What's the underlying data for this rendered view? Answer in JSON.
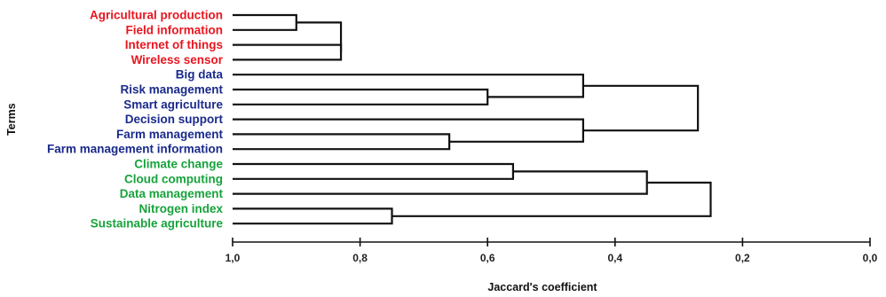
{
  "chart_data": {
    "type": "dendrogram",
    "title": "",
    "xlabel": "Jaccard's coefficient",
    "ylabel": "Terms",
    "xlim": [
      1.0,
      0.0
    ],
    "xticks": [
      "1,0",
      "0,8",
      "0,6",
      "0,4",
      "0,2",
      "0,0"
    ],
    "xtick_values": [
      1.0,
      0.8,
      0.6,
      0.4,
      0.2,
      0.0
    ],
    "colors": {
      "red": "#e8161f",
      "blue": "#1a2a8c",
      "green": "#17a33b"
    },
    "terms": [
      {
        "label": "Agricultural production",
        "group": "red"
      },
      {
        "label": "Field information",
        "group": "red"
      },
      {
        "label": "Internet of things",
        "group": "red"
      },
      {
        "label": "Wireless sensor",
        "group": "red"
      },
      {
        "label": "Big data",
        "group": "blue"
      },
      {
        "label": "Risk management",
        "group": "blue"
      },
      {
        "label": "Smart agriculture",
        "group": "blue"
      },
      {
        "label": "Decision support",
        "group": "blue"
      },
      {
        "label": "Farm management",
        "group": "blue"
      },
      {
        "label": "Farm management information",
        "group": "blue"
      },
      {
        "label": "Climate change",
        "group": "green"
      },
      {
        "label": "Cloud computing",
        "group": "green"
      },
      {
        "label": "Data management",
        "group": "green"
      },
      {
        "label": "Nitrogen index",
        "group": "green"
      },
      {
        "label": "Sustainable agriculture",
        "group": "green"
      }
    ],
    "merges": [
      {
        "id": "c1",
        "a": 0,
        "b": 1,
        "height": 0.9
      },
      {
        "id": "c2",
        "a": 2,
        "b": 3,
        "height": 0.83
      },
      {
        "id": "c3",
        "a": "c1",
        "b": "c2",
        "height": 0.83
      },
      {
        "id": "c4",
        "a": 5,
        "b": 6,
        "height": 0.6
      },
      {
        "id": "c5",
        "a": 4,
        "b": "c4",
        "height": 0.45
      },
      {
        "id": "c6",
        "a": 8,
        "b": 9,
        "height": 0.66
      },
      {
        "id": "c7",
        "a": 7,
        "b": "c6",
        "height": 0.45
      },
      {
        "id": "c8",
        "a": "c5",
        "b": "c7",
        "height": 0.27
      },
      {
        "id": "c9",
        "a": 10,
        "b": 11,
        "height": 0.56
      },
      {
        "id": "c10",
        "a": "c9",
        "b": 12,
        "height": 0.35
      },
      {
        "id": "c11",
        "a": 13,
        "b": 14,
        "height": 0.75
      },
      {
        "id": "c12",
        "a": "c10",
        "b": "c11",
        "height": 0.25
      }
    ]
  }
}
